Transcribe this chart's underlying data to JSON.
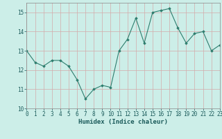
{
  "x": [
    0,
    1,
    2,
    3,
    4,
    5,
    6,
    7,
    8,
    9,
    10,
    11,
    12,
    13,
    14,
    15,
    16,
    17,
    18,
    19,
    20,
    21,
    22,
    23
  ],
  "y": [
    13.0,
    12.4,
    12.2,
    12.5,
    12.5,
    12.2,
    11.5,
    10.5,
    11.0,
    11.2,
    11.1,
    13.0,
    13.6,
    14.7,
    13.4,
    15.0,
    15.1,
    15.2,
    14.2,
    13.4,
    13.9,
    14.0,
    13.0,
    13.3
  ],
  "xlabel": "Humidex (Indice chaleur)",
  "xlim": [
    0,
    23
  ],
  "ylim": [
    10,
    15.5
  ],
  "yticks": [
    10,
    11,
    12,
    13,
    14,
    15
  ],
  "xticks": [
    0,
    1,
    2,
    3,
    4,
    5,
    6,
    7,
    8,
    9,
    10,
    11,
    12,
    13,
    14,
    15,
    16,
    17,
    18,
    19,
    20,
    21,
    22,
    23
  ],
  "line_color": "#2e7d6e",
  "marker": "D",
  "marker_size": 1.8,
  "bg_color": "#cceee8",
  "grid_color": "#d4aaaa",
  "tick_color": "#1a5a5a",
  "tick_fontsize": 5.5,
  "xlabel_fontsize": 6.5,
  "line_width": 0.8
}
